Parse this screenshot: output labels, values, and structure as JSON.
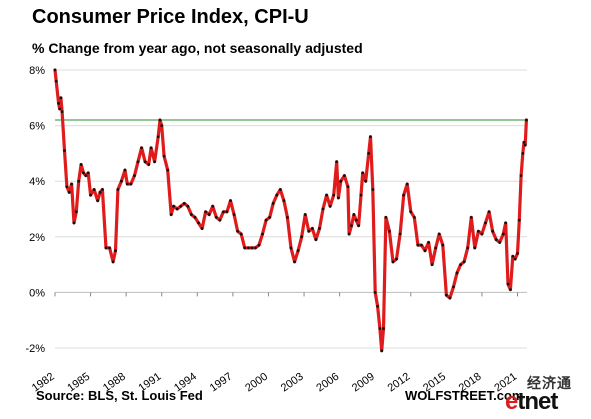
{
  "title": "Consumer  Price Index, CPI-U",
  "subtitle": "% Change from year ago, not seasonally adjusted",
  "source": "Source: BLS, St. Louis Fed",
  "brand": "WOLFSTREET.com",
  "logo": {
    "cn": "经济通",
    "e": "e",
    "tnet": "tnet"
  },
  "colors": {
    "series": "#e01b1b",
    "marker": "#111111",
    "reference": "#2e8b2e",
    "grid": "#dcdcdc"
  },
  "chart_data": {
    "type": "line",
    "title": "Consumer  Price Index, CPI-U",
    "subtitle": "% Change from year ago, not seasonally adjusted",
    "xlim": [
      1982.0,
      2021.8
    ],
    "ylim": [
      -2,
      8
    ],
    "x_ticks": [
      1982,
      1985,
      1988,
      1991,
      1994,
      1997,
      2000,
      2003,
      2006,
      2009,
      2012,
      2015,
      2018,
      2021
    ],
    "y_ticks": [
      -2,
      0,
      2,
      4,
      6,
      8
    ],
    "y_tick_labels": [
      "-2%",
      "0%",
      "2%",
      "4%",
      "6%",
      "8%"
    ],
    "grid": true,
    "reference_line": {
      "y": 6.2
    },
    "series": [
      {
        "points": [
          [
            1982.0,
            8.0
          ],
          [
            1982.1,
            7.6
          ],
          [
            1982.3,
            6.8
          ],
          [
            1982.4,
            6.6
          ],
          [
            1982.5,
            7.0
          ],
          [
            1982.6,
            6.5
          ],
          [
            1982.8,
            5.1
          ],
          [
            1983.0,
            3.8
          ],
          [
            1983.2,
            3.6
          ],
          [
            1983.4,
            3.9
          ],
          [
            1983.6,
            2.5
          ],
          [
            1983.8,
            2.9
          ],
          [
            1984.0,
            4.0
          ],
          [
            1984.2,
            4.6
          ],
          [
            1984.4,
            4.3
          ],
          [
            1984.6,
            4.2
          ],
          [
            1984.8,
            4.3
          ],
          [
            1985.0,
            3.5
          ],
          [
            1985.3,
            3.7
          ],
          [
            1985.6,
            3.3
          ],
          [
            1985.8,
            3.6
          ],
          [
            1986.0,
            3.7
          ],
          [
            1986.3,
            1.6
          ],
          [
            1986.6,
            1.6
          ],
          [
            1986.9,
            1.1
          ],
          [
            1987.1,
            1.5
          ],
          [
            1987.3,
            3.7
          ],
          [
            1987.6,
            4.0
          ],
          [
            1987.9,
            4.4
          ],
          [
            1988.1,
            3.9
          ],
          [
            1988.4,
            3.9
          ],
          [
            1988.7,
            4.2
          ],
          [
            1989.0,
            4.7
          ],
          [
            1989.3,
            5.2
          ],
          [
            1989.6,
            4.7
          ],
          [
            1989.9,
            4.6
          ],
          [
            1990.1,
            5.2
          ],
          [
            1990.4,
            4.7
          ],
          [
            1990.7,
            5.6
          ],
          [
            1990.85,
            6.2
          ],
          [
            1991.0,
            6.0
          ],
          [
            1991.2,
            4.9
          ],
          [
            1991.5,
            4.4
          ],
          [
            1991.8,
            2.8
          ],
          [
            1992.0,
            3.1
          ],
          [
            1992.3,
            3.0
          ],
          [
            1992.6,
            3.1
          ],
          [
            1992.9,
            3.2
          ],
          [
            1993.2,
            3.1
          ],
          [
            1993.5,
            2.8
          ],
          [
            1993.8,
            2.7
          ],
          [
            1994.1,
            2.5
          ],
          [
            1994.4,
            2.3
          ],
          [
            1994.7,
            2.9
          ],
          [
            1995.0,
            2.8
          ],
          [
            1995.3,
            3.1
          ],
          [
            1995.6,
            2.7
          ],
          [
            1995.9,
            2.6
          ],
          [
            1996.2,
            2.9
          ],
          [
            1996.5,
            2.9
          ],
          [
            1996.8,
            3.3
          ],
          [
            1997.1,
            2.8
          ],
          [
            1997.4,
            2.2
          ],
          [
            1997.7,
            2.1
          ],
          [
            1998.0,
            1.6
          ],
          [
            1998.3,
            1.6
          ],
          [
            1998.6,
            1.6
          ],
          [
            1998.9,
            1.6
          ],
          [
            1999.2,
            1.7
          ],
          [
            1999.5,
            2.1
          ],
          [
            1999.8,
            2.6
          ],
          [
            2000.1,
            2.7
          ],
          [
            2000.4,
            3.2
          ],
          [
            2000.7,
            3.5
          ],
          [
            2001.0,
            3.7
          ],
          [
            2001.3,
            3.3
          ],
          [
            2001.6,
            2.7
          ],
          [
            2001.9,
            1.6
          ],
          [
            2002.2,
            1.1
          ],
          [
            2002.5,
            1.5
          ],
          [
            2002.8,
            2.0
          ],
          [
            2003.1,
            2.8
          ],
          [
            2003.4,
            2.2
          ],
          [
            2003.7,
            2.3
          ],
          [
            2004.0,
            1.9
          ],
          [
            2004.3,
            2.3
          ],
          [
            2004.6,
            3.0
          ],
          [
            2004.9,
            3.5
          ],
          [
            2005.2,
            3.1
          ],
          [
            2005.5,
            3.5
          ],
          [
            2005.75,
            4.7
          ],
          [
            2005.9,
            3.4
          ],
          [
            2006.1,
            4.0
          ],
          [
            2006.4,
            4.2
          ],
          [
            2006.7,
            3.8
          ],
          [
            2006.8,
            2.1
          ],
          [
            2007.0,
            2.4
          ],
          [
            2007.2,
            2.8
          ],
          [
            2007.4,
            2.6
          ],
          [
            2007.6,
            2.4
          ],
          [
            2007.8,
            3.5
          ],
          [
            2007.95,
            4.3
          ],
          [
            2008.2,
            4.0
          ],
          [
            2008.45,
            5.0
          ],
          [
            2008.6,
            5.6
          ],
          [
            2008.8,
            3.7
          ],
          [
            2009.0,
            0.0
          ],
          [
            2009.2,
            -0.5
          ],
          [
            2009.4,
            -1.3
          ],
          [
            2009.55,
            -2.1
          ],
          [
            2009.7,
            -1.3
          ],
          [
            2009.9,
            2.7
          ],
          [
            2010.2,
            2.2
          ],
          [
            2010.5,
            1.1
          ],
          [
            2010.8,
            1.2
          ],
          [
            2011.1,
            2.1
          ],
          [
            2011.4,
            3.5
          ],
          [
            2011.7,
            3.9
          ],
          [
            2012.0,
            2.9
          ],
          [
            2012.3,
            2.7
          ],
          [
            2012.6,
            1.7
          ],
          [
            2012.9,
            1.7
          ],
          [
            2013.2,
            1.5
          ],
          [
            2013.5,
            1.8
          ],
          [
            2013.8,
            1.0
          ],
          [
            2014.1,
            1.6
          ],
          [
            2014.4,
            2.1
          ],
          [
            2014.7,
            1.7
          ],
          [
            2015.0,
            -0.1
          ],
          [
            2015.3,
            -0.2
          ],
          [
            2015.6,
            0.2
          ],
          [
            2015.9,
            0.7
          ],
          [
            2016.2,
            1.0
          ],
          [
            2016.5,
            1.1
          ],
          [
            2016.8,
            1.6
          ],
          [
            2017.1,
            2.7
          ],
          [
            2017.4,
            1.6
          ],
          [
            2017.7,
            2.2
          ],
          [
            2018.0,
            2.1
          ],
          [
            2018.3,
            2.5
          ],
          [
            2018.6,
            2.9
          ],
          [
            2018.9,
            2.2
          ],
          [
            2019.2,
            1.9
          ],
          [
            2019.5,
            1.8
          ],
          [
            2019.8,
            2.1
          ],
          [
            2020.0,
            2.5
          ],
          [
            2020.2,
            0.3
          ],
          [
            2020.4,
            0.1
          ],
          [
            2020.6,
            1.3
          ],
          [
            2020.8,
            1.2
          ],
          [
            2021.0,
            1.4
          ],
          [
            2021.15,
            2.6
          ],
          [
            2021.3,
            4.2
          ],
          [
            2021.45,
            5.0
          ],
          [
            2021.55,
            5.4
          ],
          [
            2021.65,
            5.3
          ],
          [
            2021.75,
            6.2
          ]
        ]
      }
    ]
  }
}
